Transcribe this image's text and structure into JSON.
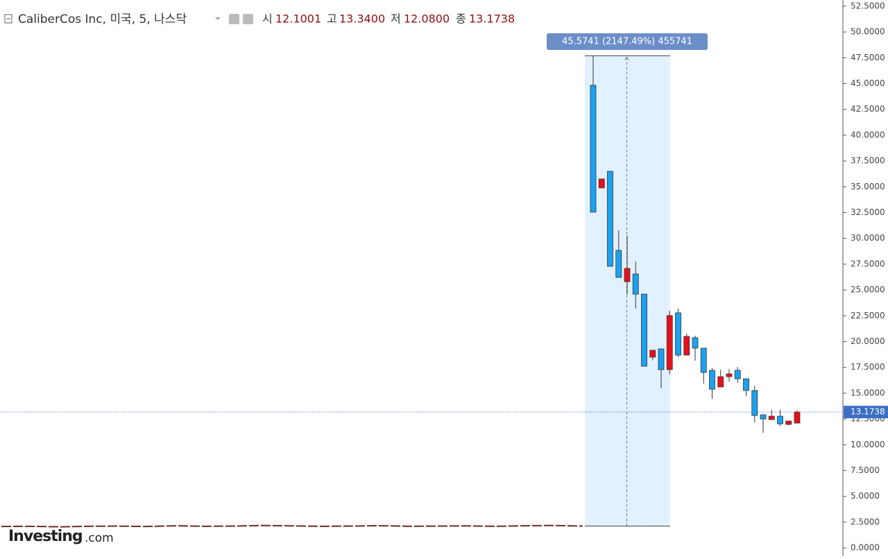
{
  "chart_data": {
    "type": "candlestick",
    "header": {
      "title": "CaliberCos Inc, 미국, 5, 나스닥",
      "open_label": "시",
      "open": "12.1001",
      "high_label": "고",
      "high": "13.3400",
      "low_label": "저",
      "low": "12.0800",
      "close_label": "종",
      "close": "13.1738"
    },
    "open": [
      44.84,
      34.89,
      36.5,
      28.84,
      25.81,
      26.55,
      24.6,
      18.49,
      19.29,
      17.28,
      22.79,
      18.69,
      20.37,
      19.36,
      17.21,
      15.6,
      16.6,
      17.21,
      16.4,
      15.26,
      12.91,
      12.44,
      12.77,
      11.97,
      12.1001
    ],
    "high": [
      47.69,
      35.76,
      36.5,
      30.79,
      30.25,
      27.76,
      24.6,
      19.16,
      19.29,
      22.99,
      23.19,
      20.77,
      20.57,
      19.36,
      17.41,
      17.28,
      17.34,
      17.54,
      16.4,
      15.73,
      12.91,
      13.38,
      13.38,
      12.3,
      13.34
    ],
    "low": [
      32.54,
      34.89,
      27.29,
      26.22,
      24.54,
      23.19,
      17.61,
      18.2,
      15.46,
      16.81,
      18.49,
      18.69,
      18.15,
      15.93,
      14.45,
      15.6,
      16.13,
      16.0,
      14.72,
      12.17,
      11.16,
      12.44,
      11.83,
      11.9,
      12.08
    ],
    "close": [
      32.54,
      35.76,
      27.29,
      26.22,
      27.09,
      24.6,
      17.61,
      19.16,
      17.28,
      22.52,
      18.69,
      20.5,
      19.36,
      17.01,
      15.39,
      16.6,
      16.87,
      16.4,
      15.26,
      12.84,
      12.5,
      12.77,
      12.03,
      12.3,
      13.1738
    ],
    "history": [
      2.08,
      2.1,
      2.05,
      2.1,
      2.12,
      2.08,
      2.15,
      2.1,
      2.12,
      2.18,
      2.14,
      2.1,
      2.12,
      2.16,
      2.1,
      2.12,
      2.14,
      2.1,
      2.15,
      2.18,
      2.12
    ],
    "up_color": "#e8101a",
    "down_color": "#1aa2f0",
    "last": {
      "value": 13.1738,
      "label": "13.1738"
    },
    "measure": {
      "label": "45.5741 (2147.49%) 455741",
      "from": 2.12,
      "to": 47.69
    },
    "ylim": [
      -0.8,
      53.1
    ],
    "yticks": [
      {
        "value": 0,
        "label": "0.0000"
      },
      {
        "value": 2.5,
        "label": "2.5000"
      },
      {
        "value": 5,
        "label": "5.0000"
      },
      {
        "value": 7.5,
        "label": "7.5000"
      },
      {
        "value": 10,
        "label": "10.0000"
      },
      {
        "value": 12.5,
        "label": "12.5000"
      },
      {
        "value": 15,
        "label": "15.0000"
      },
      {
        "value": 17.5,
        "label": "17.5000"
      },
      {
        "value": 20,
        "label": "20.0000"
      },
      {
        "value": 22.5,
        "label": "22.5000"
      },
      {
        "value": 25,
        "label": "25.0000"
      },
      {
        "value": 27.5,
        "label": "27.5000"
      },
      {
        "value": 30,
        "label": "30.0000"
      },
      {
        "value": 32.5,
        "label": "32.5000"
      },
      {
        "value": 35,
        "label": "35.0000"
      },
      {
        "value": 37.5,
        "label": "37.5000"
      },
      {
        "value": 40,
        "label": "40.0000"
      },
      {
        "value": 42.5,
        "label": "42.5000"
      },
      {
        "value": 45,
        "label": "45.0000"
      },
      {
        "value": 47.5,
        "label": "47.5000"
      },
      {
        "value": 50,
        "label": "50.0000"
      },
      {
        "value": 52.5,
        "label": "52.5000"
      }
    ],
    "brand": [
      "Investing",
      ".com"
    ]
  }
}
